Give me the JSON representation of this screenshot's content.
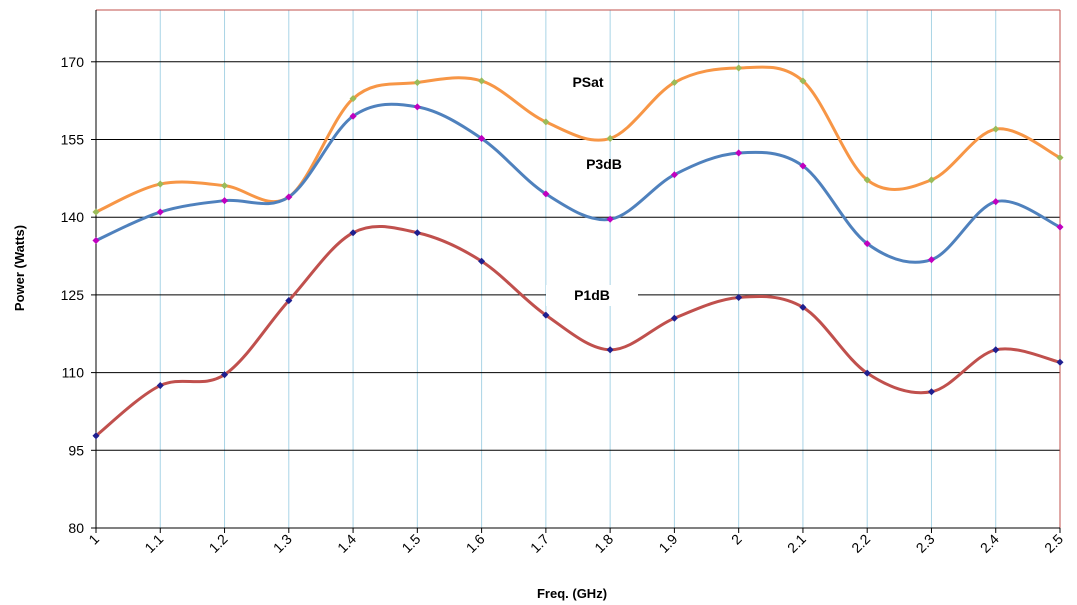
{
  "chart_data": {
    "type": "line",
    "title": "",
    "xlabel": "Freq. (GHz)",
    "ylabel": "Power (Watts)",
    "x": [
      1,
      1.1,
      1.2,
      1.3,
      1.4,
      1.5,
      1.6,
      1.7,
      1.8,
      1.9,
      2,
      2.1,
      2.2,
      2.3,
      2.4,
      2.5
    ],
    "x_tick_labels": [
      "1",
      "1.1",
      "1.2",
      "1.3",
      "1.4",
      "1.5",
      "1.6",
      "1.7",
      "1.8",
      "1.9",
      "2",
      "2.1",
      "2.2",
      "2.3",
      "2.4",
      "2.5"
    ],
    "xlim": [
      1,
      2.5
    ],
    "ylim": [
      80,
      180
    ],
    "y_ticks": [
      80,
      95,
      110,
      125,
      140,
      155,
      170
    ],
    "y_tick_labels": [
      "80",
      "95",
      "110",
      "125",
      "140",
      "155",
      "170"
    ],
    "grid": true,
    "series": [
      {
        "name": "PSat",
        "color": "#F79646",
        "marker_color": "#9BBB59",
        "values": [
          141.0,
          146.4,
          146.1,
          143.9,
          162.9,
          166.0,
          166.3,
          158.4,
          155.2,
          166.0,
          168.8,
          166.3,
          147.2,
          147.2,
          157.0,
          151.5
        ]
      },
      {
        "name": "P3dB",
        "color": "#4F81BD",
        "marker_color": "#C000C0",
        "values": [
          135.5,
          141.0,
          143.2,
          143.9,
          159.5,
          161.3,
          155.2,
          144.5,
          139.6,
          148.2,
          152.4,
          149.9,
          134.9,
          131.8,
          143.0,
          138.1
        ]
      },
      {
        "name": "P1dB",
        "color": "#C0504D",
        "marker_color": "#1F1F8F",
        "values": [
          97.8,
          107.5,
          109.6,
          123.9,
          137.0,
          137.0,
          131.5,
          121.1,
          114.4,
          120.5,
          124.5,
          122.6,
          109.9,
          106.3,
          114.4,
          112.0
        ]
      }
    ]
  }
}
